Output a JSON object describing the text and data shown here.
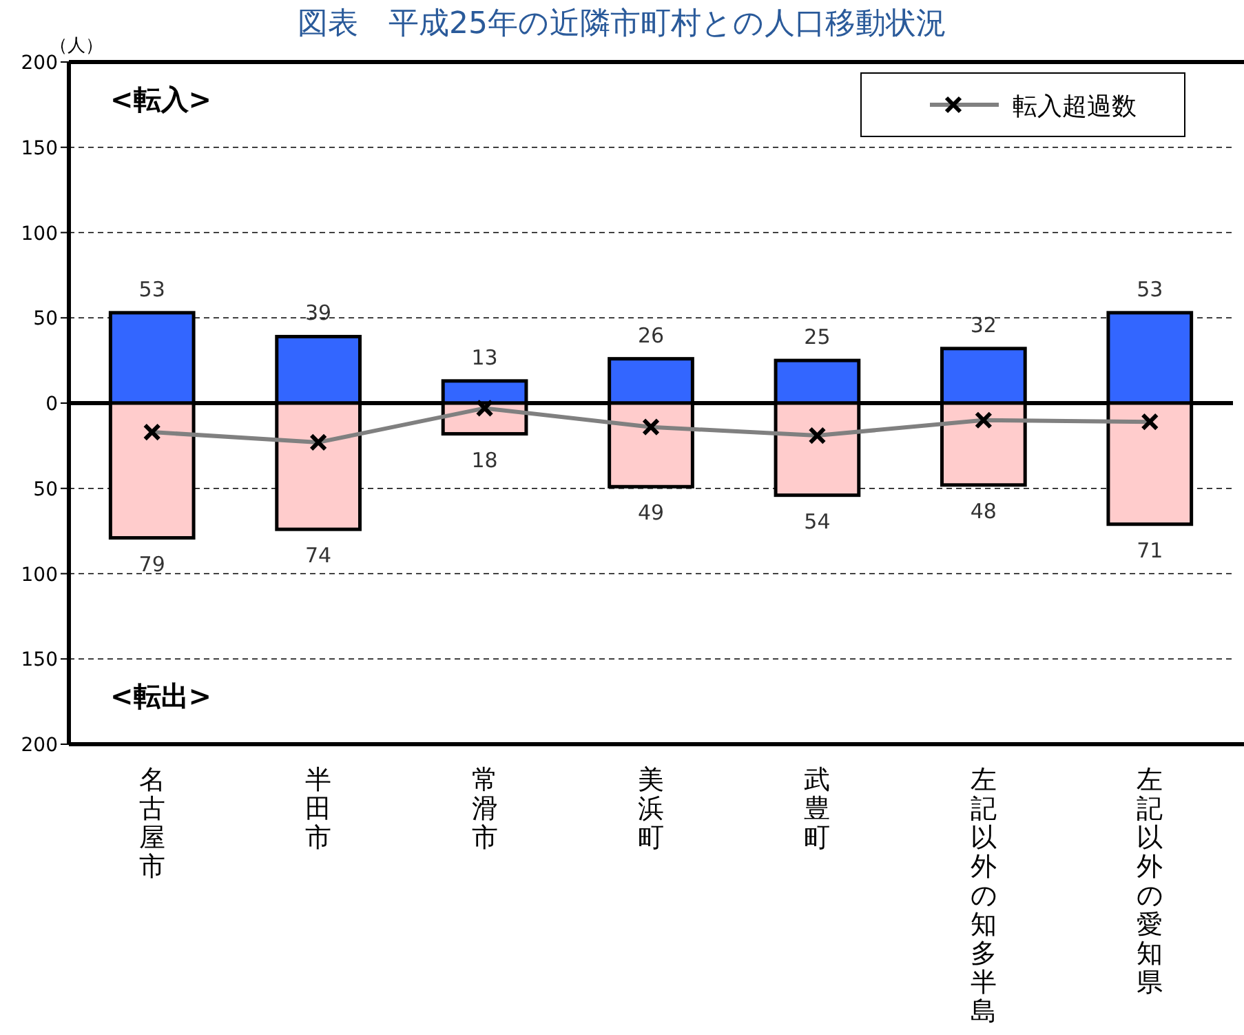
{
  "chart_data": {
    "type": "bar",
    "title": "図表　平成25年の近隣市町村との人口移動状況",
    "ylabel": "（人）",
    "categories": [
      "名古屋市",
      "半田市",
      "常滑市",
      "美浜町",
      "武豊町",
      "左記以外の知多半島",
      "左記以外の愛知県"
    ],
    "series": [
      {
        "color": "#3366ff",
        "values": [
          53,
          39,
          13,
          26,
          25,
          32,
          53
        ],
        "base": [
          0,
          0,
          0,
          0,
          0,
          0,
          0
        ],
        "value_labels": [
          "53",
          "39",
          "13",
          "26",
          "25",
          "32",
          "53"
        ]
      },
      {
        "color": "#ffcccc",
        "values": [
          79,
          74,
          18,
          49,
          54,
          48,
          71
        ],
        "base": [
          -79,
          -74,
          -18,
          -49,
          -54,
          -48,
          -71
        ],
        "value_labels": [
          "79",
          "74",
          "18",
          "49",
          "54",
          "48",
          "71"
        ]
      },
      {
        "type": "line",
        "name": "転入超過数",
        "color": "#808080",
        "marker": "cross",
        "line_style": "solid",
        "values": [
          -17,
          -23,
          -3,
          -14,
          -19,
          -10,
          -11
        ]
      }
    ],
    "ylim": [
      -200,
      200
    ],
    "yticks": [
      {
        "value": 200,
        "label": "200"
      },
      {
        "value": 150,
        "label": "150"
      },
      {
        "value": 100,
        "label": "100"
      },
      {
        "value": 50,
        "label": "50"
      },
      {
        "value": 0,
        "label": "0"
      },
      {
        "value": -50,
        "label": "50"
      },
      {
        "value": -100,
        "label": "100"
      },
      {
        "value": -150,
        "label": "150"
      },
      {
        "value": -200,
        "label": "200"
      }
    ],
    "ref_lines": [
      {
        "axis": "y",
        "value": 0,
        "color": "#000000"
      }
    ],
    "annotations": [
      "<転入>",
      "<転出>"
    ],
    "grid": "y",
    "legend": "top right"
  }
}
